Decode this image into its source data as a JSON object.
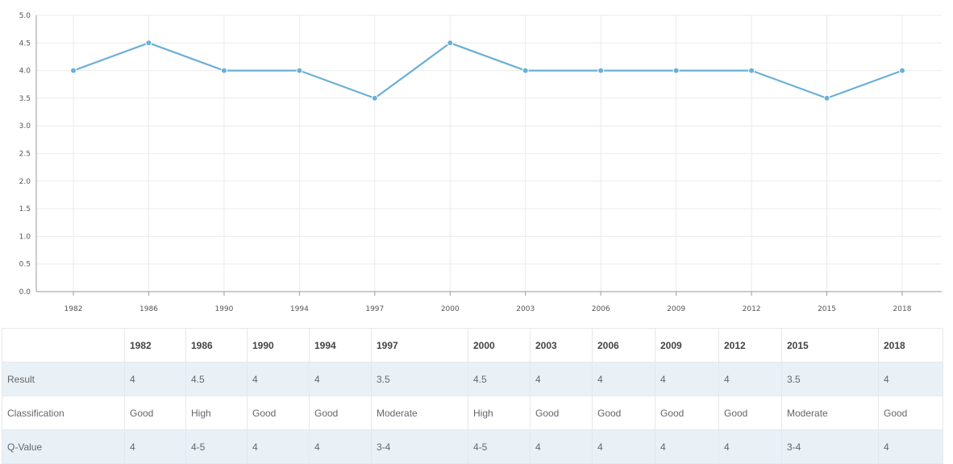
{
  "chart_data": {
    "type": "line",
    "categories": [
      "1982",
      "1986",
      "1990",
      "1994",
      "1997",
      "2000",
      "2003",
      "2006",
      "2009",
      "2012",
      "2015",
      "2018"
    ],
    "series": [
      {
        "values": [
          4,
          4.5,
          4,
          4,
          3.5,
          4.5,
          4,
          4,
          4,
          4,
          3.5,
          4
        ],
        "color": "#6aafd6"
      }
    ],
    "ylim": [
      0,
      5
    ],
    "yticks": [
      "0.0",
      "0.5",
      "1.0",
      "1.5",
      "2.0",
      "2.5",
      "3.0",
      "3.5",
      "4.0",
      "4.5",
      "5.0"
    ],
    "grid": true,
    "title": "",
    "xlabel": "",
    "ylabel": ""
  },
  "table": {
    "corner": "",
    "years": [
      "1982",
      "1986",
      "1990",
      "1994",
      "1997",
      "2000",
      "2003",
      "2006",
      "2009",
      "2012",
      "2015",
      "2018"
    ],
    "rows": [
      {
        "label": "Result",
        "cells": [
          "4",
          "4.5",
          "4",
          "4",
          "3.5",
          "4.5",
          "4",
          "4",
          "4",
          "4",
          "3.5",
          "4"
        ]
      },
      {
        "label": "Classification",
        "cells": [
          "Good",
          "High",
          "Good",
          "Good",
          "Moderate",
          "High",
          "Good",
          "Good",
          "Good",
          "Good",
          "Moderate",
          "Good"
        ]
      },
      {
        "label": "Q-Value",
        "cells": [
          "4",
          "4-5",
          "4",
          "4",
          "3-4",
          "4-5",
          "4",
          "4",
          "4",
          "4",
          "3-4",
          "4"
        ]
      }
    ]
  }
}
